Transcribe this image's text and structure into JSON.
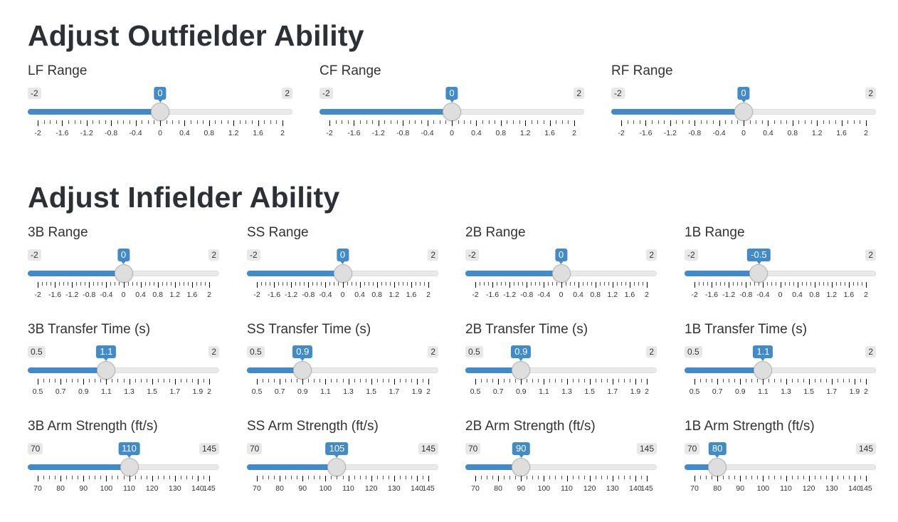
{
  "outfield": {
    "title": "Adjust Outfielder Ability",
    "sliders": [
      {
        "label": "LF Range",
        "min": -2,
        "max": 2,
        "value": 0,
        "value_label": "0",
        "min_label": "-2",
        "max_label": "2",
        "ticks": [
          "-2",
          "-1.6",
          "-1.2",
          "-0.8",
          "-0.4",
          "0",
          "0.4",
          "0.8",
          "1.2",
          "1.6",
          "2"
        ]
      },
      {
        "label": "CF Range",
        "min": -2,
        "max": 2,
        "value": 0,
        "value_label": "0",
        "min_label": "-2",
        "max_label": "2",
        "ticks": [
          "-2",
          "-1.6",
          "-1.2",
          "-0.8",
          "-0.4",
          "0",
          "0.4",
          "0.8",
          "1.2",
          "1.6",
          "2"
        ]
      },
      {
        "label": "RF Range",
        "min": -2,
        "max": 2,
        "value": 0,
        "value_label": "0",
        "min_label": "-2",
        "max_label": "2",
        "ticks": [
          "-2",
          "-1.6",
          "-1.2",
          "-0.8",
          "-0.4",
          "0",
          "0.4",
          "0.8",
          "1.2",
          "1.6",
          "2"
        ]
      }
    ]
  },
  "infield": {
    "title": "Adjust Infielder Ability",
    "sliders": [
      {
        "label": "3B Range",
        "min": -2,
        "max": 2,
        "value": 0,
        "value_label": "0",
        "min_label": "-2",
        "max_label": "2",
        "ticks": [
          "-2",
          "-1.6",
          "-1.2",
          "-0.8",
          "-0.4",
          "0",
          "0.4",
          "0.8",
          "1.2",
          "1.6",
          "2"
        ]
      },
      {
        "label": "SS Range",
        "min": -2,
        "max": 2,
        "value": 0,
        "value_label": "0",
        "min_label": "-2",
        "max_label": "2",
        "ticks": [
          "-2",
          "-1.6",
          "-1.2",
          "-0.8",
          "-0.4",
          "0",
          "0.4",
          "0.8",
          "1.2",
          "1.6",
          "2"
        ]
      },
      {
        "label": "2B Range",
        "min": -2,
        "max": 2,
        "value": 0,
        "value_label": "0",
        "min_label": "-2",
        "max_label": "2",
        "ticks": [
          "-2",
          "-1.6",
          "-1.2",
          "-0.8",
          "-0.4",
          "0",
          "0.4",
          "0.8",
          "1.2",
          "1.6",
          "2"
        ]
      },
      {
        "label": "1B Range",
        "min": -2,
        "max": 2,
        "value": -0.5,
        "value_label": "-0.5",
        "min_label": "-2",
        "max_label": "2",
        "ticks": [
          "-2",
          "-1.6",
          "-1.2",
          "-0.8",
          "-0.4",
          "0",
          "0.4",
          "0.8",
          "1.2",
          "1.6",
          "2"
        ]
      },
      {
        "label": "3B Transfer Time (s)",
        "min": 0.5,
        "max": 2,
        "value": 1.1,
        "value_label": "1.1",
        "min_label": "0.5",
        "max_label": "2",
        "ticks": [
          "0.5",
          "0.7",
          "0.9",
          "1.1",
          "1.3",
          "1.5",
          "1.7",
          "1.9",
          "2"
        ]
      },
      {
        "label": "SS Transfer Time (s)",
        "min": 0.5,
        "max": 2,
        "value": 0.9,
        "value_label": "0.9",
        "min_label": "0.5",
        "max_label": "2",
        "ticks": [
          "0.5",
          "0.7",
          "0.9",
          "1.1",
          "1.3",
          "1.5",
          "1.7",
          "1.9",
          "2"
        ]
      },
      {
        "label": "2B Transfer Time (s)",
        "min": 0.5,
        "max": 2,
        "value": 0.9,
        "value_label": "0.9",
        "min_label": "0.5",
        "max_label": "2",
        "ticks": [
          "0.5",
          "0.7",
          "0.9",
          "1.1",
          "1.3",
          "1.5",
          "1.7",
          "1.9",
          "2"
        ]
      },
      {
        "label": "1B Transfer Time (s)",
        "min": 0.5,
        "max": 2,
        "value": 1.1,
        "value_label": "1.1",
        "min_label": "0.5",
        "max_label": "2",
        "ticks": [
          "0.5",
          "0.7",
          "0.9",
          "1.1",
          "1.3",
          "1.5",
          "1.7",
          "1.9",
          "2"
        ]
      },
      {
        "label": "3B Arm Strength (ft/s)",
        "min": 70,
        "max": 145,
        "value": 110,
        "value_label": "110",
        "min_label": "70",
        "max_label": "145",
        "ticks": [
          "70",
          "80",
          "90",
          "100",
          "110",
          "120",
          "130",
          "140",
          "145"
        ]
      },
      {
        "label": "SS Arm Strength (ft/s)",
        "min": 70,
        "max": 145,
        "value": 105,
        "value_label": "105",
        "min_label": "70",
        "max_label": "145",
        "ticks": [
          "70",
          "80",
          "90",
          "100",
          "110",
          "120",
          "130",
          "140",
          "145"
        ]
      },
      {
        "label": "2B Arm Strength (ft/s)",
        "min": 70,
        "max": 145,
        "value": 90,
        "value_label": "90",
        "min_label": "70",
        "max_label": "145",
        "ticks": [
          "70",
          "80",
          "90",
          "100",
          "110",
          "120",
          "130",
          "140",
          "145"
        ]
      },
      {
        "label": "1B Arm Strength (ft/s)",
        "min": 70,
        "max": 145,
        "value": 80,
        "value_label": "80",
        "min_label": "70",
        "max_label": "145",
        "ticks": [
          "70",
          "80",
          "90",
          "100",
          "110",
          "120",
          "130",
          "140",
          "145"
        ]
      }
    ]
  },
  "colors": {
    "accent": "#428bca",
    "track": "#eaeaea",
    "handle": "#dedede"
  }
}
